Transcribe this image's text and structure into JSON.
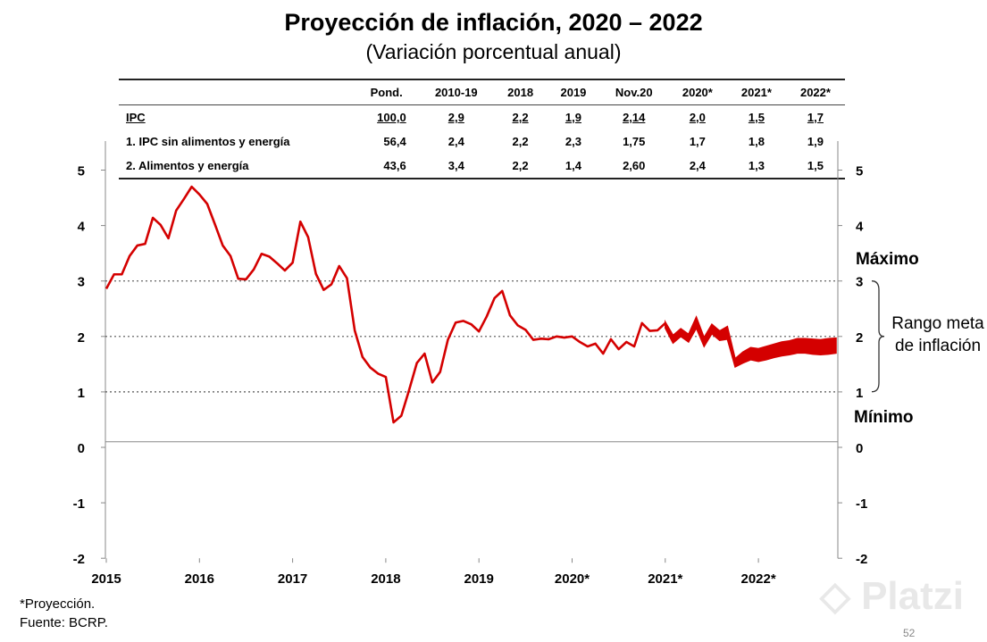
{
  "title": "Proyección de inflación, 2020 – 2022",
  "subtitle": "(Variación porcentual anual)",
  "table": {
    "headers": [
      "",
      "Pond.",
      "2010-19",
      "2018",
      "2019",
      "Nov.20",
      "2020*",
      "2021*",
      "2022*"
    ],
    "rows": [
      {
        "label": "IPC",
        "values": [
          "100,0",
          "2,9",
          "2,2",
          "1,9",
          "2,14",
          "2,0",
          "1,5",
          "1,7"
        ]
      },
      {
        "label": "1. IPC sin alimentos y energía",
        "values": [
          "56,4",
          "2,4",
          "2,2",
          "2,3",
          "1,75",
          "1,7",
          "1,8",
          "1,9"
        ]
      },
      {
        "label": "2. Alimentos y energía",
        "values": [
          "43,6",
          "3,4",
          "2,2",
          "1,4",
          "2,60",
          "2,4",
          "1,3",
          "1,5"
        ]
      }
    ]
  },
  "chart_data": {
    "type": "line",
    "title": "Proyección de inflación, 2020 – 2022",
    "subtitle": "(Variación porcentual anual)",
    "ylim": [
      -2,
      5
    ],
    "yticks": [
      "-2",
      "-1",
      "0",
      "1",
      "2",
      "3",
      "4",
      "5"
    ],
    "xlim": [
      "2015-01",
      "2022-11"
    ],
    "xticks": [
      "2015",
      "2016",
      "2017",
      "2018",
      "2019",
      "2020*",
      "2021*",
      "2022*"
    ],
    "grid": "dotted lines at 1, 2, 3",
    "color": "#d40000",
    "observed": {
      "start": "2015-01",
      "frequency": "monthly",
      "values": [
        2.86,
        3.12,
        3.12,
        3.45,
        3.64,
        3.67,
        4.14,
        4.01,
        3.77,
        4.27,
        4.48,
        4.7,
        4.56,
        4.39,
        4.02,
        3.64,
        3.45,
        3.04,
        3.03,
        3.21,
        3.49,
        3.44,
        3.32,
        3.19,
        3.33,
        4.07,
        3.79,
        3.13,
        2.84,
        2.94,
        3.27,
        3.05,
        2.11,
        1.63,
        1.44,
        1.33,
        1.27,
        0.45,
        0.57,
        1.03,
        1.52,
        1.69,
        1.17,
        1.36,
        1.94,
        2.25,
        2.28,
        2.22,
        2.09,
        2.36,
        2.69,
        2.82,
        2.38,
        2.2,
        2.12,
        1.94,
        1.96,
        1.95,
        2.0,
        1.98,
        2.0,
        1.9,
        1.82,
        1.87,
        1.69,
        1.95,
        1.77,
        1.9,
        1.82,
        2.24,
        2.1,
        2.11,
        2.24
      ]
    },
    "projection_band": {
      "start": "2021-01",
      "frequency": "monthly",
      "low": [
        2.15,
        1.88,
        2.0,
        1.9,
        2.15,
        1.82,
        2.05,
        1.93,
        1.95,
        1.45,
        1.52,
        1.58,
        1.55,
        1.58,
        1.62,
        1.65,
        1.67,
        1.7,
        1.7,
        1.68,
        1.67,
        1.68,
        1.7
      ],
      "high": [
        2.26,
        2.02,
        2.14,
        2.04,
        2.35,
        1.98,
        2.22,
        2.1,
        2.18,
        1.6,
        1.72,
        1.8,
        1.78,
        1.82,
        1.86,
        1.9,
        1.92,
        1.96,
        1.96,
        1.95,
        1.94,
        1.96,
        1.97
      ]
    },
    "annotations": {
      "max_label": "Máximo",
      "min_label": "Mínimo",
      "range_label": "Rango meta de inflación",
      "range": [
        1,
        3
      ]
    }
  },
  "footnotes": [
    "*Proyección.",
    "Fuente: BCRP."
  ],
  "page_number": "52",
  "watermark": "Platzi"
}
